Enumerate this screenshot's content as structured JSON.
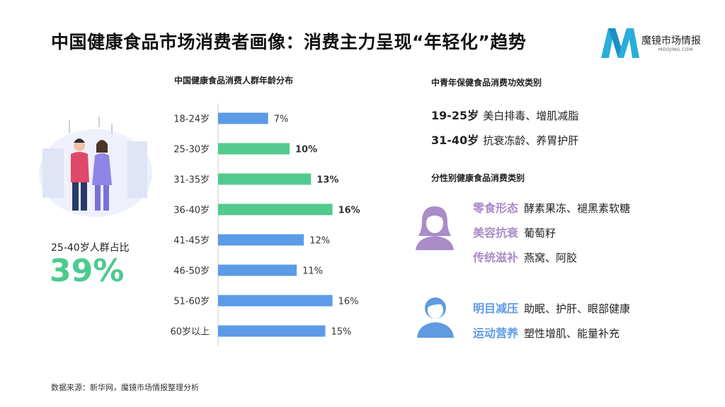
{
  "title": "中国健康食品市场消费者画像：消费主力呈现“年轻化”趋势",
  "logo": {
    "name": "魔镜市场情报",
    "domain": "MOOJING.COM"
  },
  "share": {
    "label": "25-40岁人群占比",
    "value": "39%"
  },
  "chart_data": {
    "type": "bar",
    "orientation": "horizontal",
    "title": "中国健康食品消费人群年龄分布",
    "categories": [
      "18-24岁",
      "25-30岁",
      "31-35岁",
      "36-40岁",
      "41-45岁",
      "46-50岁",
      "51-60岁",
      "60岁以上"
    ],
    "values": [
      7,
      10,
      13,
      16,
      12,
      11,
      16,
      15
    ],
    "labels": [
      "7%",
      "10%",
      "13%",
      "16%",
      "12%",
      "11%",
      "16%",
      "15%"
    ],
    "highlight": [
      false,
      true,
      true,
      true,
      false,
      false,
      false,
      false
    ],
    "colors": {
      "default": "#5b9be8",
      "highlight": "#52ca8e"
    },
    "xlim": [
      0,
      20
    ],
    "grid": false
  },
  "efficacy": {
    "title": "中青年保健食品消费功效类别",
    "rows": [
      {
        "age": "19-25岁",
        "text": "美白排毒、增肌减脂"
      },
      {
        "age": "31-40岁",
        "text": "抗衰冻龄、养胃护肝"
      }
    ]
  },
  "gender": {
    "title": "分性别健康食品消费类别",
    "female": [
      {
        "cat": "零食形态",
        "items": "酵素果冻、褪黑素软糖"
      },
      {
        "cat": "美容抗衰",
        "items": "葡萄籽"
      },
      {
        "cat": "传统滋补",
        "items": "燕窝、阿胶"
      }
    ],
    "male": [
      {
        "cat": "明目减压",
        "items": "助眠、护肝、眼部健康"
      },
      {
        "cat": "运动营养",
        "items": "塑性增肌、能量补充"
      }
    ],
    "colors": {
      "female": "#a98cc8",
      "male": "#5f9be0"
    }
  },
  "source": "数据来源：新华网，魔镜市场情报整理分析"
}
